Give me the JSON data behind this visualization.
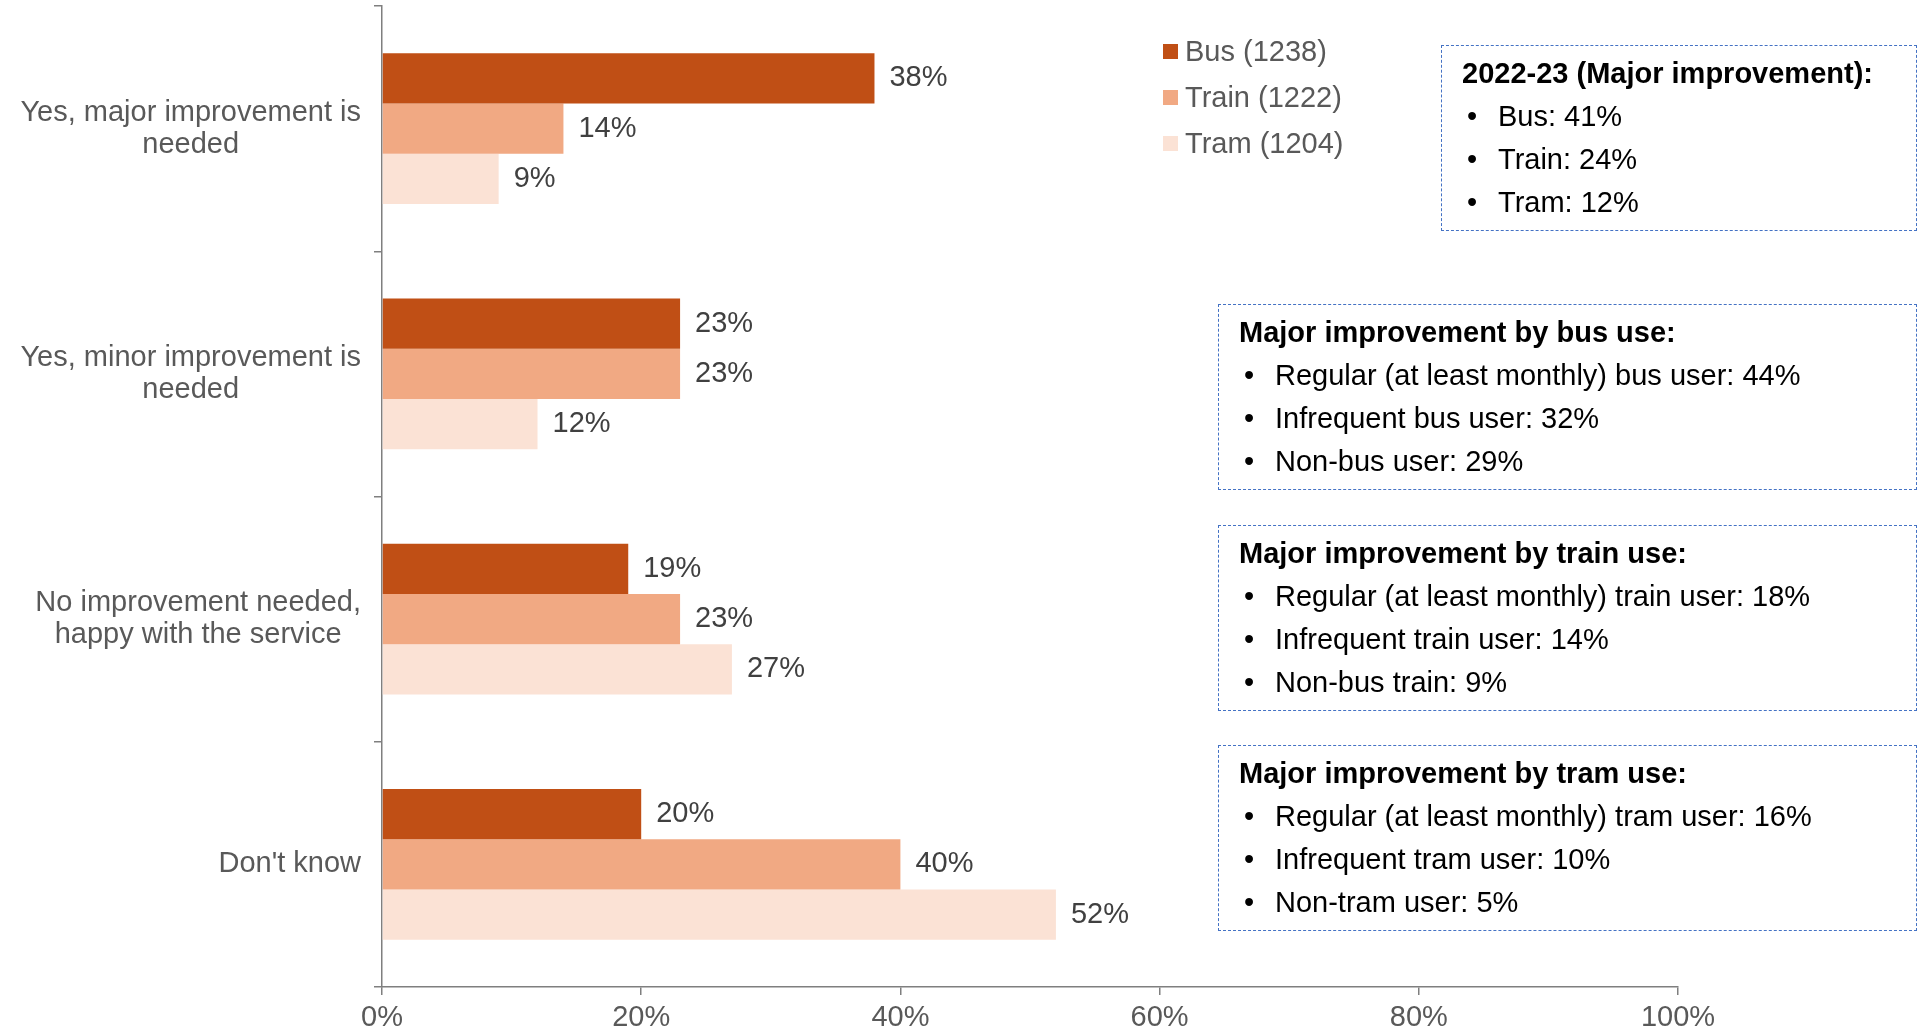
{
  "chart_data": {
    "type": "bar",
    "orientation": "horizontal",
    "categories": [
      "Yes, major improvement is needed",
      "Yes, minor improvement is needed",
      "No improvement needed, happy with the service",
      "Don't know"
    ],
    "series": [
      {
        "name": "Bus (1238)",
        "color": "#c04f15",
        "values": [
          38,
          23,
          19,
          20
        ],
        "value_labels": [
          "38%",
          "23%",
          "19%",
          "20%"
        ]
      },
      {
        "name": "Train (1222)",
        "color": "#f1a983",
        "values": [
          14,
          23,
          23,
          40
        ],
        "value_labels": [
          "14%",
          "23%",
          "23%",
          "40%"
        ]
      },
      {
        "name": "Tram (1204)",
        "color": "#fbe2d5",
        "values": [
          9,
          12,
          27,
          52
        ],
        "value_labels": [
          "9%",
          "12%",
          "27%",
          "52%"
        ]
      }
    ],
    "xlim": [
      0,
      100
    ],
    "xticks": [
      {
        "value": 0,
        "label": "0%"
      },
      {
        "value": 20,
        "label": "20%"
      },
      {
        "value": 40,
        "label": "40%"
      },
      {
        "value": 60,
        "label": "60%"
      },
      {
        "value": 80,
        "label": "80%"
      },
      {
        "value": 100,
        "label": "100%"
      }
    ],
    "legend": "top right",
    "annotations": [
      "2022-23 (Major improvement):\n• Bus: 41%\n• Train: 24%\n• Tram: 12%",
      "Major improvement by bus use:\n• Regular (at least monthly) bus user: 44%\n• Infrequent bus user: 32%\n• Non-bus user: 29%",
      "Major improvement by train use:\n• Regular (at least monthly) train user: 18%\n• Infrequent train user: 14%\n• Non-bus train: 9%",
      "Major improvement by tram use:\n• Regular (at least monthly) tram user: 16%\n• Infrequent tram user: 10%\n• Non-tram user: 5%"
    ]
  }
}
